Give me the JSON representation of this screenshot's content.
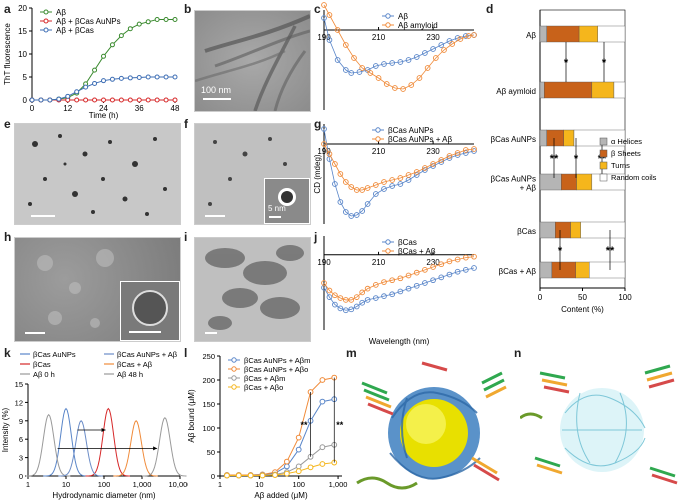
{
  "panels": {
    "a": "a",
    "b": "b",
    "c": "c",
    "d": "d",
    "e": "e",
    "f": "f",
    "g": "g",
    "h": "h",
    "i": "i",
    "j": "j",
    "k": "k",
    "l": "l",
    "m": "m",
    "n": "n"
  },
  "scalebars": {
    "b": "100 nm",
    "f_inset": "5 nm"
  },
  "colors": {
    "abeta": "#3a8a2e",
    "aucnp": "#d62728",
    "bcas": "#3f6fb5",
    "cd_blue": "#5a86c9",
    "cd_orange": "#f08b3a",
    "helix": "#b5b5b5",
    "sheet": "#c8621a",
    "turn": "#f5b61c",
    "coil": "#ffffff"
  },
  "chart_data": [
    {
      "id": "a",
      "type": "line",
      "ylabel": "ThT fluorescence",
      "xlabel": "Time (h)",
      "xlim": [
        0,
        48
      ],
      "ylim": [
        0,
        20
      ],
      "xticks": [
        0,
        12,
        24,
        36,
        48
      ],
      "yticks": [
        0,
        5,
        10,
        15,
        20
      ],
      "series": [
        {
          "name": "Aβ",
          "color": "#3a8a2e",
          "x": [
            0,
            3,
            6,
            9,
            12,
            15,
            18,
            21,
            24,
            27,
            30,
            33,
            36,
            39,
            42,
            45,
            48
          ],
          "y": [
            0,
            0,
            0,
            0.2,
            0.5,
            1.5,
            3.5,
            6.5,
            9.5,
            12,
            14,
            15.5,
            16.5,
            17,
            17.5,
            17.5,
            17.5
          ]
        },
        {
          "name": "Aβ + βCas AuNPs",
          "color": "#d62728",
          "x": [
            0,
            3,
            6,
            9,
            12,
            15,
            18,
            21,
            24,
            27,
            30,
            33,
            36,
            39,
            42,
            45,
            48
          ],
          "y": [
            0,
            0,
            0,
            0,
            0,
            0,
            0,
            0,
            0,
            0,
            0,
            0,
            0,
            0,
            0,
            0,
            0
          ]
        },
        {
          "name": "Aβ + βCas",
          "color": "#3f6fb5",
          "x": [
            0,
            3,
            6,
            9,
            12,
            15,
            18,
            21,
            24,
            27,
            30,
            33,
            36,
            39,
            42,
            45,
            48
          ],
          "y": [
            0,
            0,
            0,
            0.2,
            0.8,
            1.8,
            2.8,
            3.6,
            4.2,
            4.5,
            4.7,
            4.8,
            4.9,
            5,
            5,
            5,
            5
          ]
        }
      ]
    },
    {
      "id": "c",
      "type": "line",
      "ylim": [
        -8,
        2
      ],
      "xlim": [
        190,
        245
      ],
      "xticks": [
        190,
        210,
        230
      ],
      "series": [
        {
          "name": "Aβ",
          "color": "#5a86c9",
          "x": [
            190,
            192,
            195,
            198,
            200,
            203,
            206,
            209,
            212,
            215,
            218,
            221,
            224,
            227,
            230,
            233,
            236,
            239,
            242,
            245
          ],
          "y": [
            1.2,
            -1,
            -3,
            -4,
            -4.3,
            -4.2,
            -4,
            -3.6,
            -3.4,
            -3.3,
            -3.2,
            -3,
            -2.7,
            -2.3,
            -1.9,
            -1.5,
            -1.1,
            -0.8,
            -0.6,
            -0.5
          ]
        },
        {
          "name": "Aβ amyloid",
          "color": "#f08b3a",
          "x": [
            190,
            192,
            195,
            198,
            201,
            204,
            207,
            210,
            213,
            216,
            219,
            222,
            225,
            228,
            231,
            234,
            237,
            240,
            243,
            245
          ],
          "y": [
            2.5,
            1.5,
            0,
            -1.5,
            -2.8,
            -3.8,
            -4.3,
            -4.8,
            -5.4,
            -5.8,
            -5.9,
            -5.5,
            -4.8,
            -3.8,
            -2.8,
            -2,
            -1.4,
            -0.9,
            -0.6,
            -0.5
          ]
        }
      ]
    },
    {
      "id": "g",
      "type": "line",
      "ylim": [
        -8,
        2
      ],
      "xlim": [
        190,
        245
      ],
      "xticks": [
        190,
        210,
        230
      ],
      "ylabel": "CD (mdeg)",
      "series": [
        {
          "name": "βCas AuNPs",
          "color": "#5a86c9",
          "x": [
            190,
            192,
            194,
            196,
            198,
            200,
            202,
            204,
            206,
            209,
            212,
            215,
            218,
            221,
            224,
            227,
            230,
            233,
            236,
            239,
            242,
            245
          ],
          "y": [
            1.5,
            -1.5,
            -4,
            -5.8,
            -6.8,
            -7.2,
            -7.1,
            -6.7,
            -6,
            -5,
            -4.5,
            -4.2,
            -4,
            -3.6,
            -3.1,
            -2.6,
            -2.2,
            -1.8,
            -1.4,
            -1.1,
            -0.9,
            -0.7
          ]
        },
        {
          "name": "βCas AuNPs + Aβ",
          "color": "#f08b3a",
          "x": [
            190,
            192,
            194,
            196,
            198,
            200,
            202,
            204,
            206,
            209,
            212,
            215,
            218,
            221,
            224,
            227,
            230,
            233,
            236,
            239,
            242,
            245
          ],
          "y": [
            0,
            -1,
            -2,
            -3,
            -3.8,
            -4.3,
            -4.6,
            -4.6,
            -4.4,
            -4.1,
            -3.8,
            -3.6,
            -3.4,
            -3.1,
            -2.8,
            -2.4,
            -2,
            -1.6,
            -1.2,
            -0.9,
            -0.6,
            -0.5
          ]
        }
      ]
    },
    {
      "id": "j",
      "type": "line",
      "ylim": [
        -8,
        2
      ],
      "xlim": [
        190,
        245
      ],
      "xticks": [
        190,
        210,
        230
      ],
      "xlabel": "Wavelength (nm)",
      "series": [
        {
          "name": "βCas",
          "color": "#5a86c9",
          "x": [
            190,
            192,
            194,
            196,
            198,
            200,
            202,
            204,
            206,
            209,
            212,
            215,
            218,
            221,
            224,
            227,
            230,
            233,
            236,
            239,
            242,
            245
          ],
          "y": [
            -3.5,
            -4.5,
            -5.3,
            -5.7,
            -5.9,
            -5.8,
            -5.5,
            -5.1,
            -4.8,
            -4.6,
            -4.4,
            -4.2,
            -3.9,
            -3.6,
            -3.3,
            -3,
            -2.7,
            -2.4,
            -2.1,
            -1.8,
            -1.6,
            -1.4
          ]
        },
        {
          "name": "βCas + Aβ",
          "color": "#f08b3a",
          "x": [
            190,
            192,
            194,
            196,
            198,
            200,
            202,
            204,
            206,
            209,
            212,
            215,
            218,
            221,
            224,
            227,
            230,
            233,
            236,
            239,
            242,
            245
          ],
          "y": [
            -3,
            -3.8,
            -4.3,
            -4.6,
            -4.8,
            -4.8,
            -4.5,
            -4,
            -3.6,
            -3.2,
            -2.9,
            -2.7,
            -2.5,
            -2.2,
            -1.9,
            -1.6,
            -1.3,
            -1,
            -0.7,
            -0.5,
            -0.3,
            -0.2
          ]
        }
      ]
    },
    {
      "id": "d",
      "type": "bar",
      "orientation": "horizontal-stacked",
      "xlabel": "Content (%)",
      "xlim": [
        0,
        100
      ],
      "xticks": [
        0,
        50,
        100
      ],
      "legend": [
        "α Helices",
        "β Sheets",
        "Turns",
        "Random coils"
      ],
      "categories": [
        "Aβ",
        "Aβ aymloid",
        "βCas AuNPs",
        "βCas AuNPs + Aβ",
        "βCas",
        "βCas + Aβ"
      ],
      "series": [
        {
          "name": "α Helices",
          "values": [
            8,
            5,
            8,
            25,
            18,
            14
          ]
        },
        {
          "name": "β Sheets",
          "values": [
            38,
            56,
            20,
            18,
            18,
            28
          ]
        },
        {
          "name": "Turns",
          "values": [
            22,
            26,
            12,
            18,
            12,
            16
          ]
        },
        {
          "name": "Random coils",
          "values": [
            32,
            13,
            60,
            39,
            52,
            42
          ]
        }
      ],
      "significance": [
        "*",
        "*",
        "**",
        "*",
        "**",
        "*",
        "**"
      ]
    },
    {
      "id": "k",
      "type": "line",
      "xscale": "log",
      "xlabel": "Hydrodynamic diameter (nm)",
      "ylabel": "Intensity (%)",
      "ylim": [
        0,
        15
      ],
      "yticks": [
        0,
        3,
        6,
        9,
        12,
        15
      ],
      "xticks": [
        1,
        10,
        100,
        1000,
        10000
      ],
      "xticklabels": [
        "1",
        "10",
        "100",
        "1,000",
        "10,000"
      ],
      "series": [
        {
          "name": "βCas AuNPs",
          "color": "#5a86c9",
          "center": 10,
          "peak": 11
        },
        {
          "name": "βCas",
          "color": "#d62728",
          "center": 130,
          "peak": 11
        },
        {
          "name": "Aβ 0 h",
          "color": "#999999",
          "center": 3.5,
          "peak": 10
        },
        {
          "name": "βCas AuNPs + Aβ",
          "color": "#6b8cc7",
          "center": 25,
          "peak": 9
        },
        {
          "name": "βCas + Aβ",
          "color": "#f08b3a",
          "center": 700,
          "peak": 9
        },
        {
          "name": "Aβ 48 h",
          "color": "#9a9a9a",
          "center": 4000,
          "peak": 9.5
        }
      ]
    },
    {
      "id": "l",
      "type": "line",
      "xscale": "log",
      "xlabel": "Aβ added (μM)",
      "ylabel": "Aβ bound (μM)",
      "ylim": [
        0,
        250
      ],
      "yticks": [
        0,
        50,
        100,
        150,
        200,
        250
      ],
      "xticks": [
        1,
        10,
        100,
        1000
      ],
      "xticklabels": [
        "1",
        "10",
        "100",
        "1,000"
      ],
      "x": [
        1.5,
        3,
        6,
        12,
        25,
        50,
        100,
        200,
        400,
        800
      ],
      "series": [
        {
          "name": "βCas AuNPs + Aβm",
          "color": "#5a86c9",
          "values": [
            2,
            2,
            2,
            3,
            6,
            20,
            55,
            115,
            155,
            160
          ]
        },
        {
          "name": "βCas AuNPs + Aβo",
          "color": "#f08b3a",
          "values": [
            2,
            2,
            2,
            3,
            8,
            30,
            80,
            175,
            200,
            205
          ]
        },
        {
          "name": "βCas + Aβm",
          "color": "#9a9a9a",
          "values": [
            1,
            1,
            1,
            2,
            3,
            8,
            20,
            40,
            60,
            65
          ]
        },
        {
          "name": "βCas + Aβo",
          "color": "#f5b61c",
          "values": [
            1,
            1,
            1,
            1,
            2,
            5,
            10,
            18,
            25,
            28
          ]
        }
      ],
      "significance": [
        "**",
        "**"
      ]
    }
  ]
}
